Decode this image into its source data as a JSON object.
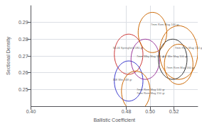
{
  "chart_data": {
    "type": "circles",
    "xlabel": "Ballistic Coefficient",
    "ylabel": "Sectional Density",
    "xlim": [
      0.4,
      0.54
    ],
    "ylim": [
      0.24,
      0.3
    ],
    "xticks": [
      {
        "value": 0.4,
        "label": "0.40"
      },
      0.48,
      {
        "value": 0.5,
        "label": "0.50"
      },
      0.52
    ],
    "yticks": [
      0.25,
      0.26,
      0.27,
      0.28,
      0.29
    ],
    "grid": true,
    "circles": [
      {
        "x": 0.482,
        "y": 0.271,
        "r": 0.012,
        "color": "#cc3333",
        "label": "30-06 Springfield 180 gr",
        "label_x": 0.468,
        "label_y": 0.275
      },
      {
        "x": 0.482,
        "y": 0.255,
        "r": 0.012,
        "color": "#3333cc",
        "label": "308 Win 168 gr",
        "label_x": 0.468,
        "label_y": 0.256
      },
      {
        "x": 0.496,
        "y": 0.268,
        "r": 0.012,
        "color": "#993399",
        "label": "7mm Wby Mag 150 gr",
        "label_x": 0.488,
        "label_y": 0.27
      },
      {
        "x": 0.488,
        "y": 0.249,
        "r": 0.012,
        "color": "#cc6600",
        "label": "7mm Rem Mag 140 gr\n7mm Rem Mag 150 gr",
        "label_x": 0.488,
        "label_y": 0.249
      },
      {
        "x": 0.502,
        "y": 0.284,
        "r": 0.012,
        "color": "#cc6600",
        "label": "7mm Rem Mag 100 gr",
        "label_x": 0.5,
        "label_y": 0.289
      },
      {
        "x": 0.524,
        "y": 0.272,
        "r": 0.016,
        "color": "#cc6600",
        "label": "7mm Rem Mag 154 gr",
        "label_x": 0.52,
        "label_y": 0.275
      },
      {
        "x": 0.519,
        "y": 0.268,
        "r": 0.012,
        "color": "#333333",
        "label": "6.5 Win Mag 100 gr",
        "label_x": 0.51,
        "label_y": 0.27
      },
      {
        "x": 0.524,
        "y": 0.265,
        "r": 0.012,
        "color": "#cc6600",
        "label": "7mm Rem Mag 160 gr",
        "label_x": 0.513,
        "label_y": 0.263
      }
    ]
  }
}
